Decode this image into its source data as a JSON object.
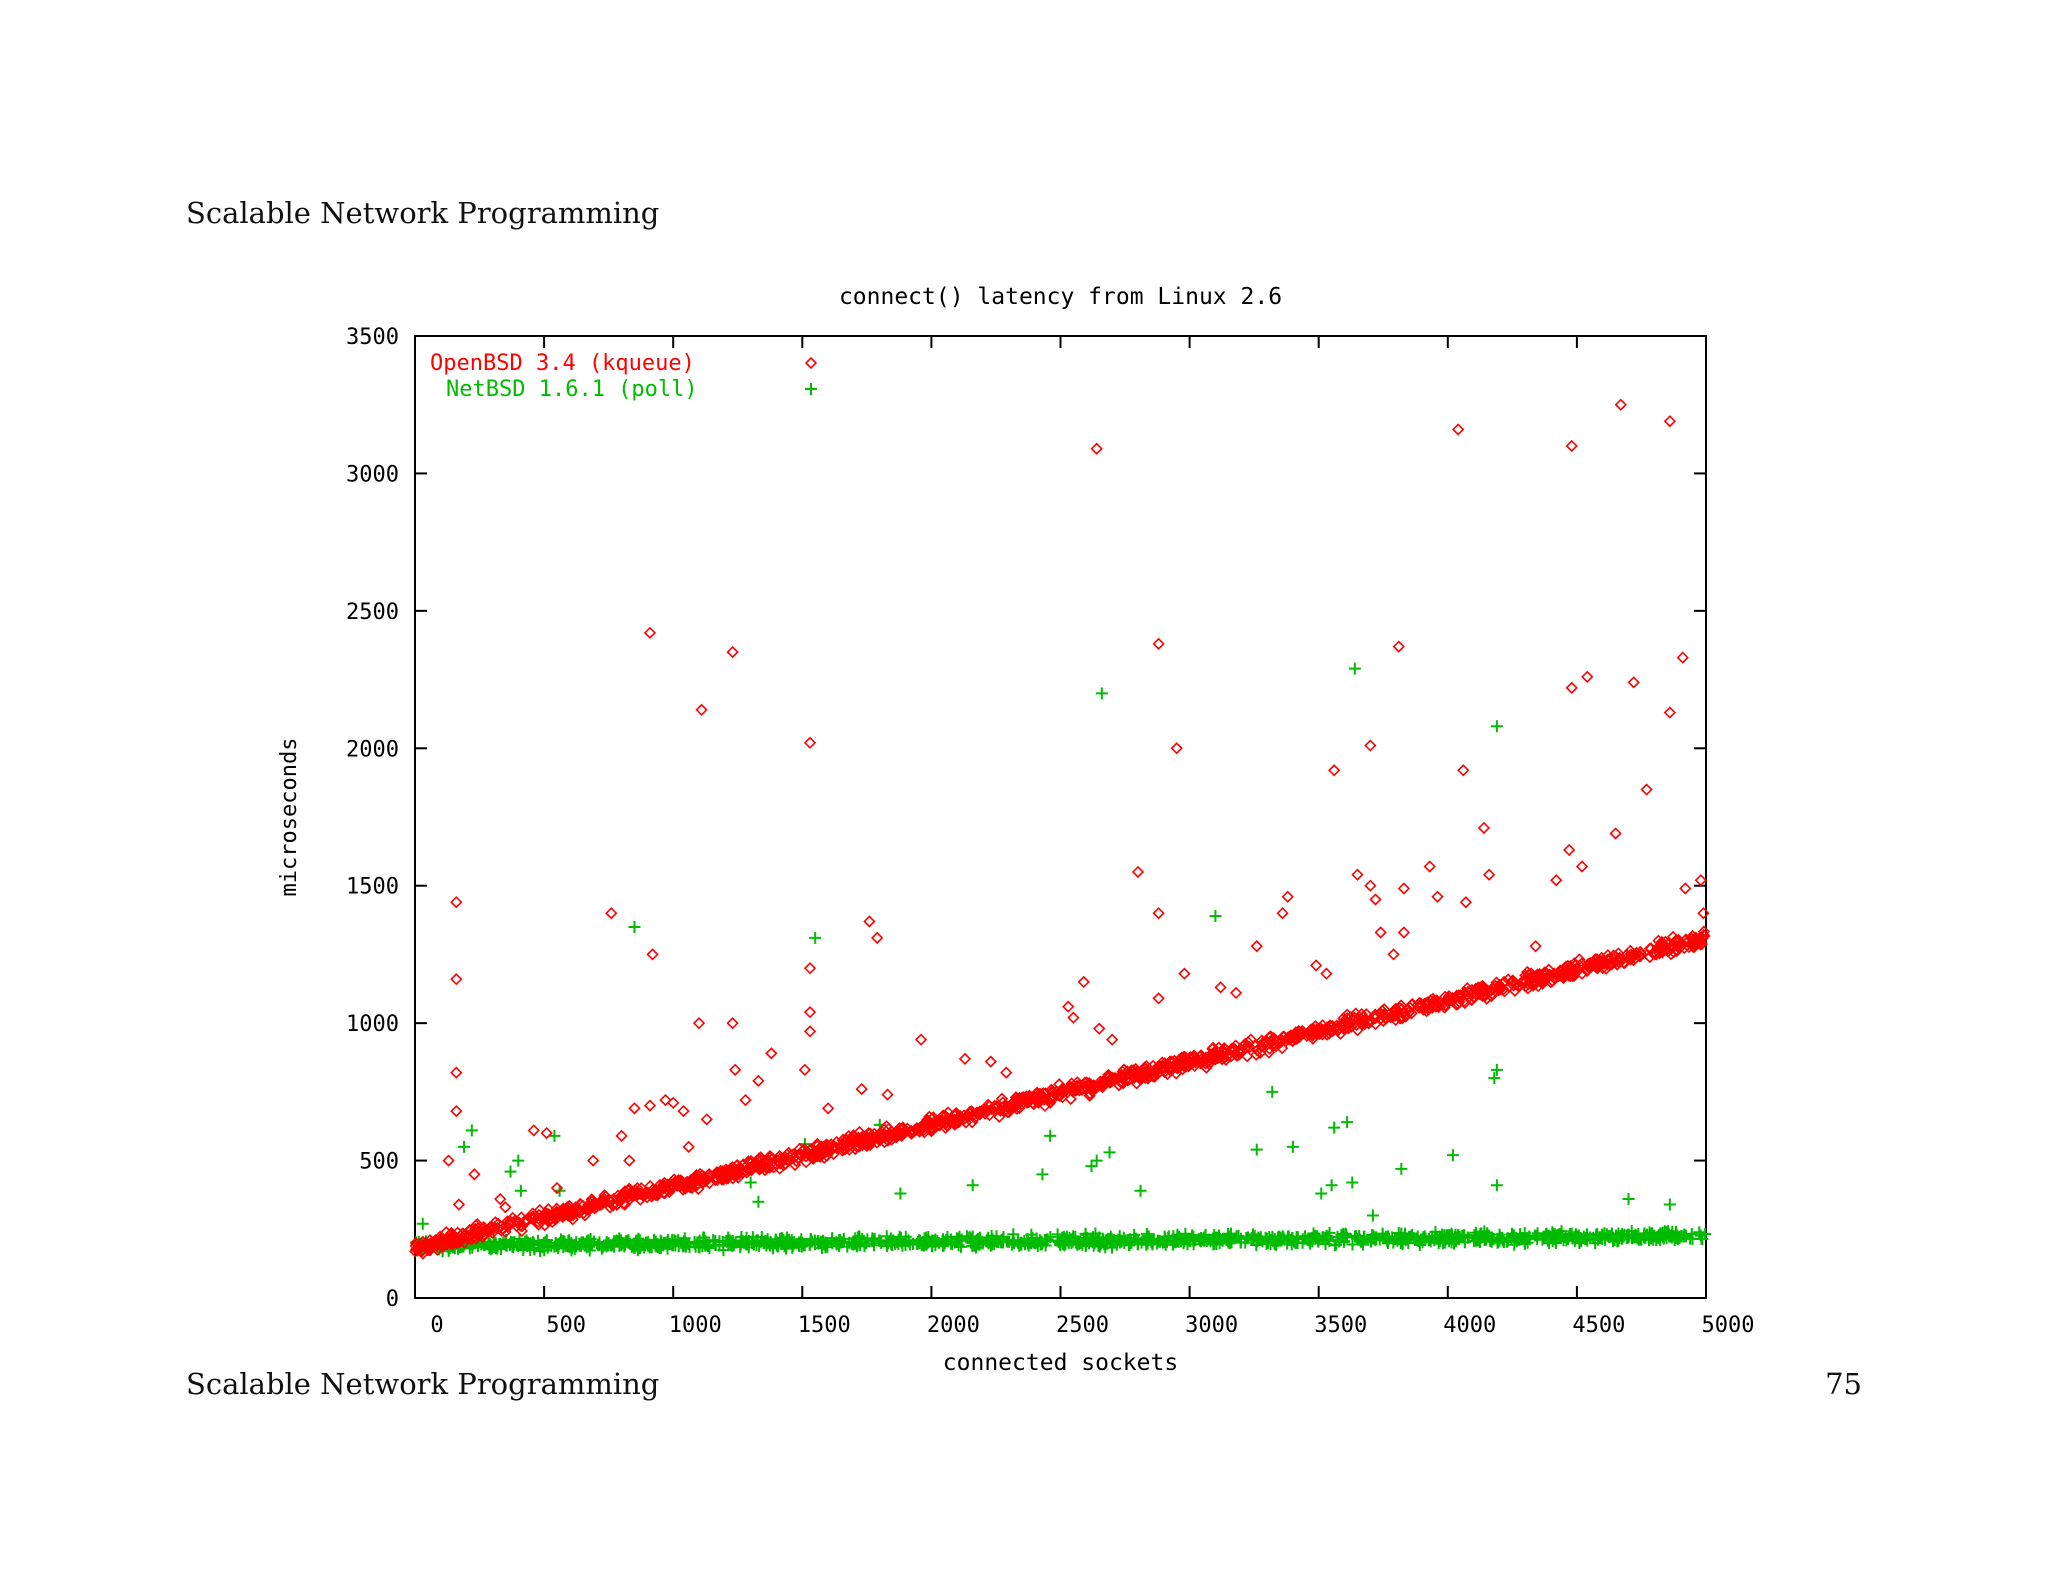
{
  "page": {
    "header": "Scalable Network Programming",
    "footer": "Scalable Network Programming",
    "page_number": "75"
  },
  "colors": {
    "series1": "#ff0000",
    "series2": "#00bb00",
    "axis": "#000000"
  },
  "chart_data": {
    "type": "scatter",
    "title": "connect() latency from Linux 2.6",
    "xlabel": "connected sockets",
    "ylabel": "microseconds",
    "xlim": [
      0,
      5000
    ],
    "ylim": [
      0,
      3500
    ],
    "xticks": [
      0,
      500,
      1000,
      1500,
      2000,
      2500,
      3000,
      3500,
      4000,
      4500,
      5000
    ],
    "yticks": [
      0,
      500,
      1000,
      1500,
      2000,
      2500,
      3000,
      3500
    ],
    "grid": false,
    "legend_position": "top-left",
    "series": [
      {
        "name": "OpenBSD 3.4 (kqueue)",
        "marker": "diamond",
        "color": "#ff0000",
        "trend": {
          "comment_free": true,
          "from": [
            0,
            180
          ],
          "to": [
            5000,
            1310
          ],
          "noise": 40,
          "points": 1600
        },
        "outliers": [
          [
            160,
            1440
          ],
          [
            160,
            1160
          ],
          [
            160,
            820
          ],
          [
            160,
            680
          ],
          [
            130,
            500
          ],
          [
            170,
            340
          ],
          [
            230,
            450
          ],
          [
            330,
            360
          ],
          [
            350,
            330
          ],
          [
            460,
            610
          ],
          [
            510,
            600
          ],
          [
            550,
            400
          ],
          [
            690,
            500
          ],
          [
            760,
            1400
          ],
          [
            800,
            590
          ],
          [
            830,
            500
          ],
          [
            850,
            690
          ],
          [
            910,
            700
          ],
          [
            920,
            1250
          ],
          [
            910,
            2420
          ],
          [
            970,
            720
          ],
          [
            1000,
            710
          ],
          [
            1040,
            680
          ],
          [
            1060,
            550
          ],
          [
            1100,
            1000
          ],
          [
            1110,
            2140
          ],
          [
            1130,
            650
          ],
          [
            1230,
            1000
          ],
          [
            1230,
            2350
          ],
          [
            1240,
            830
          ],
          [
            1280,
            720
          ],
          [
            1330,
            790
          ],
          [
            1380,
            890
          ],
          [
            1510,
            830
          ],
          [
            1530,
            1200
          ],
          [
            1530,
            1040
          ],
          [
            1530,
            970
          ],
          [
            1530,
            2020
          ],
          [
            1600,
            690
          ],
          [
            1730,
            760
          ],
          [
            1760,
            1370
          ],
          [
            1790,
            1310
          ],
          [
            1830,
            740
          ],
          [
            1960,
            940
          ],
          [
            2130,
            870
          ],
          [
            2230,
            860
          ],
          [
            2290,
            820
          ],
          [
            2530,
            1060
          ],
          [
            2550,
            1020
          ],
          [
            2590,
            1150
          ],
          [
            2640,
            3090
          ],
          [
            2650,
            980
          ],
          [
            2700,
            940
          ],
          [
            2800,
            1550
          ],
          [
            2880,
            1400
          ],
          [
            2880,
            1090
          ],
          [
            2880,
            2380
          ],
          [
            2950,
            2000
          ],
          [
            2980,
            1180
          ],
          [
            3120,
            1130
          ],
          [
            3180,
            1110
          ],
          [
            3260,
            1280
          ],
          [
            3360,
            1400
          ],
          [
            3380,
            1460
          ],
          [
            3490,
            1210
          ],
          [
            3530,
            1180
          ],
          [
            3560,
            1920
          ],
          [
            3650,
            1540
          ],
          [
            3700,
            2010
          ],
          [
            3700,
            1500
          ],
          [
            3720,
            1450
          ],
          [
            3740,
            1330
          ],
          [
            3790,
            1250
          ],
          [
            3810,
            2370
          ],
          [
            3830,
            1490
          ],
          [
            3830,
            1330
          ],
          [
            3930,
            1570
          ],
          [
            3960,
            1460
          ],
          [
            4040,
            3160
          ],
          [
            4060,
            1920
          ],
          [
            4070,
            1440
          ],
          [
            4140,
            1710
          ],
          [
            4160,
            1540
          ],
          [
            4340,
            1280
          ],
          [
            4420,
            1520
          ],
          [
            4470,
            1630
          ],
          [
            4480,
            3100
          ],
          [
            4480,
            2220
          ],
          [
            4540,
            2260
          ],
          [
            4520,
            1570
          ],
          [
            4650,
            1690
          ],
          [
            4670,
            3250
          ],
          [
            4720,
            2240
          ],
          [
            4770,
            1850
          ],
          [
            4860,
            2130
          ],
          [
            4860,
            3190
          ],
          [
            4910,
            2330
          ],
          [
            4920,
            1490
          ],
          [
            4980,
            1520
          ],
          [
            4990,
            1400
          ]
        ]
      },
      {
        "name": "NetBSD 1.6.1 (poll)",
        "marker": "plus",
        "color": "#00bb00",
        "trend": {
          "from": [
            0,
            190
          ],
          "to": [
            5000,
            225
          ],
          "noise": 30,
          "points": 1400
        },
        "outliers": [
          [
            30,
            270
          ],
          [
            190,
            550
          ],
          [
            220,
            610
          ],
          [
            370,
            460
          ],
          [
            400,
            500
          ],
          [
            410,
            390
          ],
          [
            540,
            590
          ],
          [
            560,
            390
          ],
          [
            850,
            1350
          ],
          [
            850,
            390
          ],
          [
            1300,
            420
          ],
          [
            1330,
            350
          ],
          [
            1510,
            560
          ],
          [
            1550,
            1310
          ],
          [
            1800,
            630
          ],
          [
            1880,
            380
          ],
          [
            2160,
            410
          ],
          [
            2430,
            450
          ],
          [
            2460,
            590
          ],
          [
            2620,
            480
          ],
          [
            2640,
            500
          ],
          [
            2660,
            2200
          ],
          [
            2690,
            530
          ],
          [
            2810,
            390
          ],
          [
            3100,
            1390
          ],
          [
            3260,
            540
          ],
          [
            3320,
            750
          ],
          [
            3400,
            550
          ],
          [
            3510,
            380
          ],
          [
            3550,
            410
          ],
          [
            3560,
            620
          ],
          [
            3610,
            640
          ],
          [
            3630,
            420
          ],
          [
            3710,
            300
          ],
          [
            3820,
            470
          ],
          [
            4020,
            520
          ],
          [
            4190,
            2080
          ],
          [
            4180,
            800
          ],
          [
            4190,
            830
          ],
          [
            4190,
            410
          ],
          [
            3640,
            2290
          ],
          [
            4700,
            360
          ],
          [
            4860,
            340
          ]
        ]
      }
    ]
  }
}
